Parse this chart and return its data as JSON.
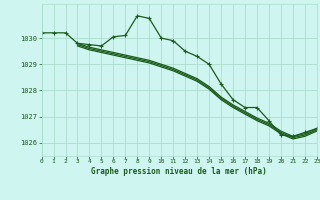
{
  "title": "Graphe pression niveau de la mer (hPa)",
  "bg_color": "#cef5f0",
  "grid_color": "#aaddcc",
  "line_color": "#1a5c1a",
  "xmin": 0,
  "xmax": 23,
  "ymin": 1025.5,
  "ymax": 1031.3,
  "yticks": [
    1026,
    1027,
    1028,
    1029,
    1030
  ],
  "xticks": [
    0,
    1,
    2,
    3,
    4,
    5,
    6,
    7,
    8,
    9,
    10,
    11,
    12,
    13,
    14,
    15,
    16,
    17,
    18,
    19,
    20,
    21,
    22,
    23
  ],
  "series": [
    {
      "x": [
        0,
        1,
        2,
        3,
        4,
        5,
        6,
        7,
        8,
        9,
        10,
        11,
        12,
        13,
        14,
        15,
        16,
        17,
        18,
        19,
        20,
        21,
        22,
        23
      ],
      "y": [
        1030.2,
        1030.2,
        1030.2,
        1029.8,
        1029.75,
        1029.7,
        1030.05,
        1030.1,
        1030.85,
        1030.75,
        1030.0,
        1029.9,
        1029.5,
        1029.3,
        1029.0,
        1028.25,
        1027.65,
        1027.35,
        1027.35,
        1026.85,
        1026.3,
        1026.25,
        1026.4,
        1026.55
      ],
      "marker": true
    },
    {
      "x": [
        3,
        4,
        5,
        6,
        7,
        8,
        9,
        10,
        11,
        12,
        13,
        14,
        15,
        16,
        17,
        18,
        19,
        20,
        21,
        22,
        23
      ],
      "y": [
        1029.8,
        1029.65,
        1029.55,
        1029.45,
        1029.35,
        1029.25,
        1029.15,
        1029.0,
        1028.85,
        1028.65,
        1028.45,
        1028.15,
        1027.75,
        1027.45,
        1027.2,
        1026.95,
        1026.75,
        1026.45,
        1026.25,
        1026.35,
        1026.55
      ],
      "marker": false
    },
    {
      "x": [
        3,
        4,
        5,
        6,
        7,
        8,
        9,
        10,
        11,
        12,
        13,
        14,
        15,
        16,
        17,
        18,
        19,
        20,
        21,
        22,
        23
      ],
      "y": [
        1029.75,
        1029.6,
        1029.5,
        1029.4,
        1029.3,
        1029.2,
        1029.1,
        1028.95,
        1028.8,
        1028.6,
        1028.4,
        1028.1,
        1027.7,
        1027.4,
        1027.15,
        1026.9,
        1026.7,
        1026.4,
        1026.2,
        1026.3,
        1026.5
      ],
      "marker": false
    },
    {
      "x": [
        3,
        4,
        5,
        6,
        7,
        8,
        9,
        10,
        11,
        12,
        13,
        14,
        15,
        16,
        17,
        18,
        19,
        20,
        21,
        22,
        23
      ],
      "y": [
        1029.7,
        1029.55,
        1029.45,
        1029.35,
        1029.25,
        1029.15,
        1029.05,
        1028.9,
        1028.75,
        1028.55,
        1028.35,
        1028.05,
        1027.65,
        1027.35,
        1027.1,
        1026.85,
        1026.65,
        1026.35,
        1026.15,
        1026.25,
        1026.45
      ],
      "marker": false
    }
  ]
}
